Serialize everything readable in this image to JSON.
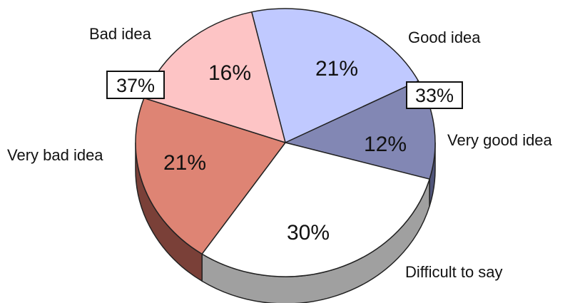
{
  "chart_data": {
    "type": "pie",
    "title": "",
    "categories": [
      "Good idea",
      "Very good idea",
      "Difficult to say",
      "Very bad idea",
      "Bad idea"
    ],
    "values": [
      21,
      12,
      30,
      21,
      16
    ],
    "value_labels": [
      "21%",
      "12%",
      "30%",
      "21%",
      "16%"
    ],
    "colors": [
      "#c0c9ff",
      "#8287b4",
      "#ffffff",
      "#de8474",
      "#fdc4c5"
    ],
    "side_colors": [
      "#a9b2e6",
      "#4f5479",
      "#a0a0a0",
      "#7a4038",
      "#d8a3a4"
    ],
    "group_annotations": [
      {
        "label": "33%",
        "covers": [
          "Good idea",
          "Very good idea"
        ]
      },
      {
        "label": "37%",
        "covers": [
          "Very bad idea",
          "Bad idea"
        ]
      }
    ],
    "legend": "none"
  }
}
